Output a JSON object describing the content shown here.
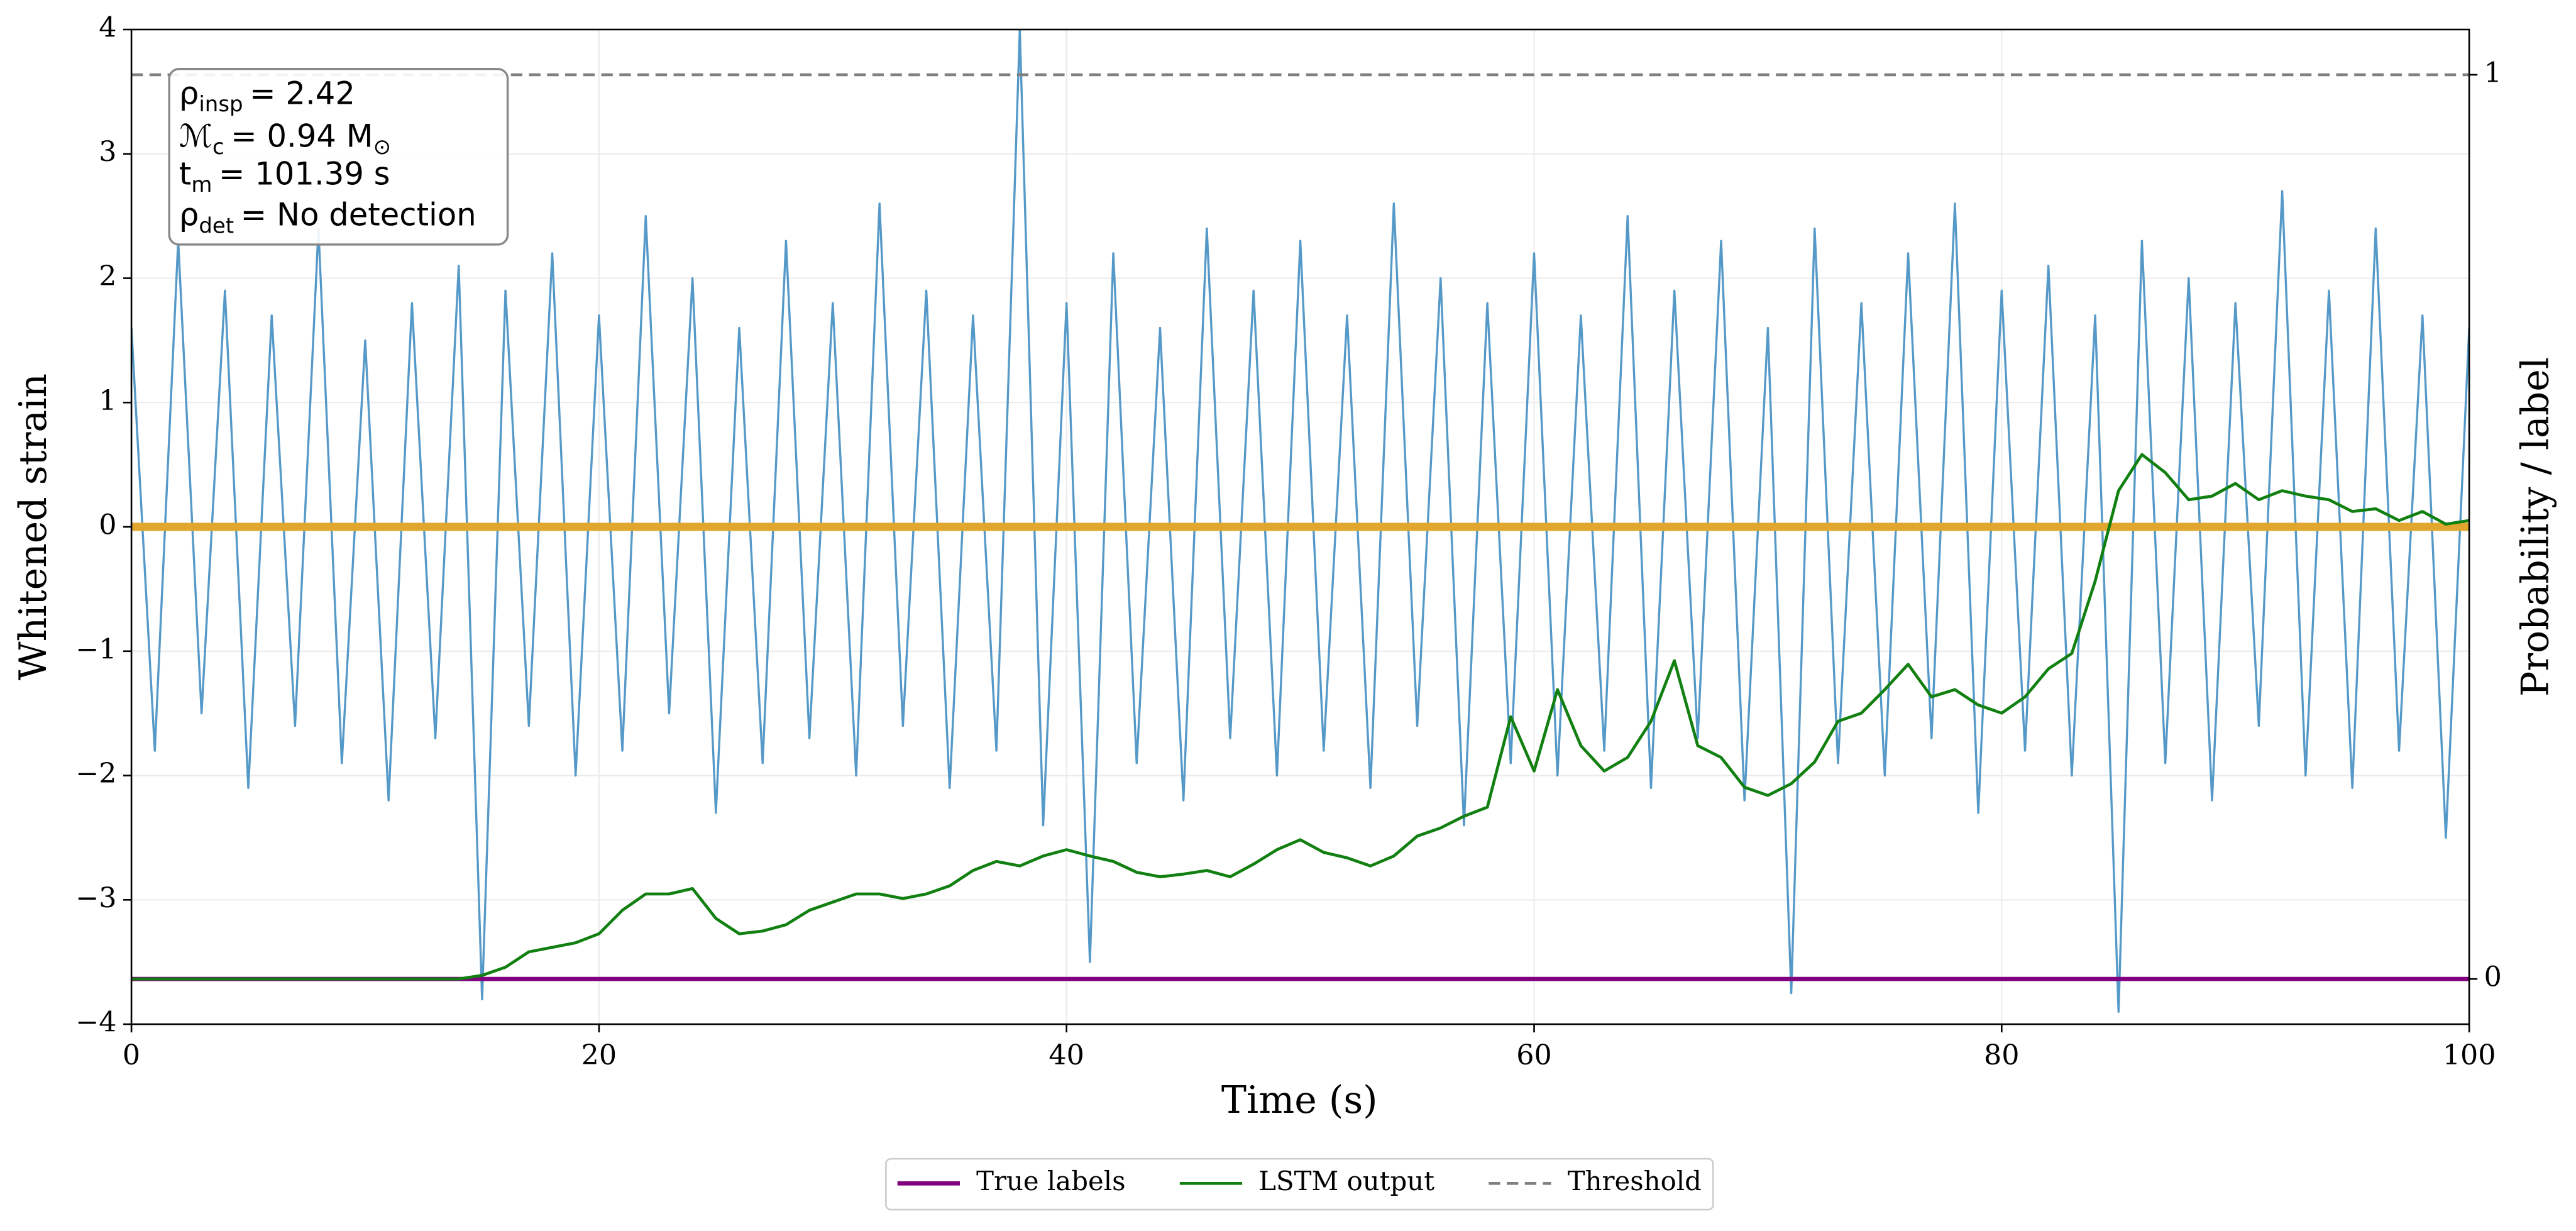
{
  "chart_data": {
    "type": "line",
    "xlabel": "Time (s)",
    "ylabel": "Whitened strain",
    "y2label": "Probability / label",
    "x": [
      0,
      1,
      2,
      3,
      4,
      5,
      6,
      7,
      8,
      9,
      10,
      11,
      12,
      13,
      14,
      15,
      16,
      17,
      18,
      19,
      20,
      21,
      22,
      23,
      24,
      25,
      26,
      27,
      28,
      29,
      30,
      31,
      32,
      33,
      34,
      35,
      36,
      37,
      38,
      39,
      40,
      41,
      42,
      43,
      44,
      45,
      46,
      47,
      48,
      49,
      50,
      51,
      52,
      53,
      54,
      55,
      56,
      57,
      58,
      59,
      60,
      61,
      62,
      63,
      64,
      65,
      66,
      67,
      68,
      69,
      70,
      71,
      72,
      73,
      74,
      75,
      76,
      77,
      78,
      79,
      80,
      81,
      82,
      83,
      84,
      85,
      86,
      87,
      88,
      89,
      90,
      91,
      92,
      93,
      94,
      95,
      96,
      97,
      98,
      99,
      100
    ],
    "xlim": [
      0,
      100
    ],
    "xticks": [
      0,
      20,
      40,
      60,
      80,
      100
    ],
    "ylim": [
      -4,
      4
    ],
    "yticks": [
      {
        "value": -4,
        "label": "−4"
      },
      {
        "value": -3,
        "label": "−3"
      },
      {
        "value": -2,
        "label": "−2"
      },
      {
        "value": -1,
        "label": "−1"
      },
      0,
      1,
      2,
      3,
      4
    ],
    "y2lim": [
      -0.05,
      1.05
    ],
    "y2ticks": [
      0,
      1
    ],
    "grid": true,
    "legend": "lower center",
    "series": [
      {
        "color": "#5599c8",
        "values": [
          1.6,
          -1.8,
          2.3,
          -1.5,
          1.9,
          -2.1,
          1.7,
          -1.6,
          2.4,
          -1.9,
          1.5,
          -2.2,
          1.8,
          -1.7,
          2.1,
          -3.8,
          1.9,
          -1.6,
          2.2,
          -2.0,
          1.7,
          -1.8,
          2.5,
          -1.5,
          2.0,
          -2.3,
          1.6,
          -1.9,
          2.3,
          -1.7,
          1.8,
          -2.0,
          2.6,
          -1.6,
          1.9,
          -2.1,
          1.7,
          -1.8,
          4.0,
          -2.4,
          1.8,
          -3.5,
          2.2,
          -1.9,
          1.6,
          -2.2,
          2.4,
          -1.7,
          1.9,
          -2.0,
          2.3,
          -1.8,
          1.7,
          -2.1,
          2.6,
          -1.6,
          2.0,
          -2.4,
          1.8,
          -1.9,
          2.2,
          -2.0,
          1.7,
          -1.8,
          2.5,
          -2.1,
          1.9,
          -1.7,
          2.3,
          -2.2,
          1.6,
          -3.75,
          2.4,
          -1.9,
          1.8,
          -2.0,
          2.2,
          -1.7,
          2.6,
          -2.3,
          1.9,
          -1.8,
          2.1,
          -2.0,
          1.7,
          -3.9,
          2.3,
          -1.9,
          2.0,
          -2.2,
          1.8,
          -1.6,
          2.7,
          -2.0,
          1.9,
          -2.1,
          2.4,
          -1.8,
          1.7,
          -2.5,
          1.6
        ]
      },
      {
        "color": "#e0a62e",
        "x": [
          0,
          100
        ],
        "values": [
          0,
          0
        ]
      },
      {
        "name": "True labels",
        "color": "#800080",
        "axis": "y2",
        "x": [
          0,
          100
        ],
        "values": [
          0,
          0
        ]
      },
      {
        "name": "LSTM output",
        "color": "#118011",
        "axis": "y2",
        "values": [
          0,
          0,
          0,
          0,
          0,
          0,
          0,
          0,
          0,
          0,
          0,
          0,
          0,
          0,
          0,
          0.004,
          0.013,
          0.03,
          0.035,
          0.04,
          0.05,
          0.076,
          0.094,
          0.094,
          0.1,
          0.067,
          0.05,
          0.053,
          0.06,
          0.076,
          0.085,
          0.094,
          0.094,
          0.089,
          0.094,
          0.103,
          0.12,
          0.13,
          0.125,
          0.136,
          0.143,
          0.136,
          0.13,
          0.118,
          0.113,
          0.116,
          0.12,
          0.113,
          0.127,
          0.143,
          0.154,
          0.14,
          0.134,
          0.125,
          0.136,
          0.158,
          0.167,
          0.18,
          0.19,
          0.29,
          0.23,
          0.32,
          0.258,
          0.23,
          0.245,
          0.285,
          0.352,
          0.258,
          0.245,
          0.212,
          0.203,
          0.216,
          0.24,
          0.285,
          0.294,
          0.32,
          0.348,
          0.312,
          0.32,
          0.303,
          0.294,
          0.312,
          0.343,
          0.36,
          0.44,
          0.54,
          0.58,
          0.56,
          0.53,
          0.534,
          0.548,
          0.53,
          0.54,
          0.534,
          0.53,
          0.517,
          0.52,
          0.507,
          0.517,
          0.503,
          0.507
        ]
      },
      {
        "name": "Threshold",
        "color": "#808080",
        "axis": "y2",
        "dashed": true,
        "x": [
          0,
          100
        ],
        "values": [
          1,
          1
        ]
      }
    ],
    "annotation": [
      [
        {
          "text": "ρ"
        },
        {
          "sub": "insp"
        },
        {
          "text": "= 2.42"
        }
      ],
      [
        {
          "text": "ℳ"
        },
        {
          "sub": "c"
        },
        {
          "text": "= 0.94 M"
        },
        {
          "sub": "⊙"
        }
      ],
      [
        {
          "text": "t"
        },
        {
          "sub": "m"
        },
        {
          "text": "= 101.39 s"
        }
      ],
      [
        {
          "text": "ρ"
        },
        {
          "sub": "det"
        },
        {
          "text": "= No detection"
        }
      ]
    ]
  }
}
